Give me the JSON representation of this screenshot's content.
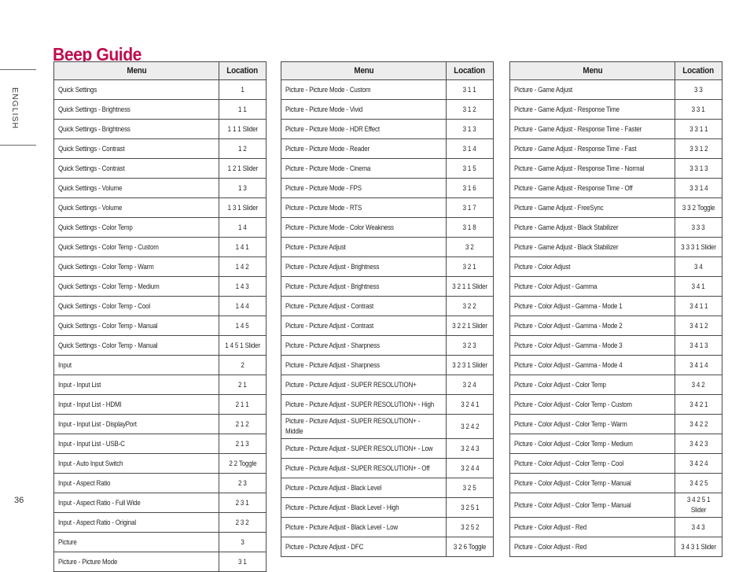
{
  "page": {
    "title": "Beep Guide",
    "title_color": "#bf0d4e",
    "language_label": "ENGLISH",
    "page_number": "36"
  },
  "tables": [
    {
      "headers": [
        "Menu",
        "Location"
      ],
      "rows": [
        [
          "Quick Settings",
          "1"
        ],
        [
          "Quick Settings - Brightness",
          "1 1"
        ],
        [
          "Quick Settings - Brightness",
          "1 1 1 Slider"
        ],
        [
          "Quick Settings - Contrast",
          "1 2"
        ],
        [
          "Quick Settings - Contrast",
          "1 2 1 Slider"
        ],
        [
          "Quick Settings - Volume",
          "1 3"
        ],
        [
          "Quick Settings - Volume",
          "1 3 1 Slider"
        ],
        [
          "Quick Settings - Color Temp",
          "1 4"
        ],
        [
          "Quick Settings - Color Temp - Custom",
          "1 4 1"
        ],
        [
          "Quick Settings - Color Temp - Warm",
          "1 4 2"
        ],
        [
          "Quick Settings - Color Temp - Medium",
          "1 4 3"
        ],
        [
          "Quick Settings - Color Temp - Cool",
          "1 4 4"
        ],
        [
          "Quick Settings - Color Temp - Manual",
          "1 4 5"
        ],
        [
          "Quick Settings - Color Temp - Manual",
          "1 4 5 1 Slider"
        ],
        [
          "Input",
          "2"
        ],
        [
          "Input - Input List",
          "2 1"
        ],
        [
          "Input - Input List - HDMI",
          "2 1 1"
        ],
        [
          "Input - Input List - DisplayPort",
          "2 1 2"
        ],
        [
          "Input - Input List - USB-C",
          "2 1 3"
        ],
        [
          "Input - Auto Input Switch",
          "2 2 Toggle"
        ],
        [
          "Input - Aspect Ratio",
          "2 3"
        ],
        [
          "Input - Aspect Ratio - Full Wide",
          "2 3 1"
        ],
        [
          "Input - Aspect Ratio - Original",
          "2 3 2"
        ],
        [
          "Picture",
          "3"
        ],
        [
          "Picture - Picture Mode",
          "3 1"
        ]
      ]
    },
    {
      "headers": [
        "Menu",
        "Location"
      ],
      "rows": [
        [
          "Picture - Picture Mode - Custom",
          "3 1 1"
        ],
        [
          "Picture - Picture Mode - Vivid",
          "3 1 2"
        ],
        [
          "Picture - Picture Mode - HDR Effect",
          "3 1 3"
        ],
        [
          "Picture - Picture Mode - Reader",
          "3 1 4"
        ],
        [
          "Picture - Picture Mode - Cinema",
          "3 1 5"
        ],
        [
          "Picture - Picture Mode - FPS",
          "3 1 6"
        ],
        [
          "Picture - Picture Mode - RTS",
          "3 1 7"
        ],
        [
          "Picture - Picture Mode - Color Weakness",
          "3 1 8"
        ],
        [
          "Picture - Picture Adjust",
          "3 2"
        ],
        [
          "Picture - Picture Adjust - Brightness",
          "3 2 1"
        ],
        [
          "Picture - Picture Adjust - Brightness",
          "3 2 1 1 Slider"
        ],
        [
          "Picture - Picture Adjust - Contrast",
          "3 2 2"
        ],
        [
          "Picture - Picture Adjust - Contrast",
          "3 2 2 1 Slider"
        ],
        [
          "Picture - Picture Adjust - Sharpness",
          "3 2 3"
        ],
        [
          "Picture - Picture Adjust - Sharpness",
          "3 2 3 1 Slider"
        ],
        [
          "Picture - Picture Adjust - SUPER RESOLUTION+",
          "3 2 4"
        ],
        [
          "Picture - Picture Adjust - SUPER RESOLUTION+ - High",
          "3 2 4 1"
        ],
        [
          "Picture - Picture Adjust - SUPER RESOLUTION+ -\nMiddle",
          "3 2 4 2"
        ],
        [
          "Picture - Picture Adjust - SUPER RESOLUTION+ - Low",
          "3 2 4 3"
        ],
        [
          "Picture - Picture Adjust - SUPER RESOLUTION+ - Off",
          "3 2 4 4"
        ],
        [
          "Picture - Picture Adjust - Black Level",
          "3 2 5"
        ],
        [
          "Picture - Picture Adjust - Black Level - High",
          "3 2 5 1"
        ],
        [
          "Picture - Picture Adjust - Black Level - Low",
          "3 2 5 2"
        ],
        [
          "Picture - Picture Adjust - DFC",
          "3 2 6 Toggle"
        ]
      ]
    },
    {
      "headers": [
        "Menu",
        "Location"
      ],
      "rows": [
        [
          "Picture - Game Adjust",
          "3 3"
        ],
        [
          "Picture - Game Adjust - Response Time",
          "3 3 1"
        ],
        [
          "Picture - Game Adjust - Response Time - Faster",
          "3 3 1 1"
        ],
        [
          "Picture - Game Adjust - Response Time - Fast",
          "3 3 1 2"
        ],
        [
          "Picture - Game Adjust - Response Time - Normal",
          "3 3 1 3"
        ],
        [
          "Picture - Game Adjust - Response Time - Off",
          "3 3 1 4"
        ],
        [
          "Picture - Game Adjust - FreeSync",
          "3 3 2 Toggle"
        ],
        [
          "Picture - Game Adjust - Black Stabilizer",
          "3 3 3"
        ],
        [
          "Picture - Game Adjust - Black Stabilizer",
          "3 3 3 1 Slider"
        ],
        [
          "Picture - Color Adjust",
          "3 4"
        ],
        [
          "Picture - Color Adjust - Gamma",
          "3 4 1"
        ],
        [
          "Picture - Color Adjust - Gamma - Mode 1",
          "3 4 1 1"
        ],
        [
          "Picture - Color Adjust - Gamma - Mode 2",
          "3 4 1 2"
        ],
        [
          "Picture - Color Adjust - Gamma - Mode 3",
          "3 4 1 3"
        ],
        [
          "Picture - Color Adjust - Gamma - Mode 4",
          "3 4 1 4"
        ],
        [
          "Picture - Color Adjust - Color Temp",
          "3 4 2"
        ],
        [
          "Picture - Color Adjust - Color Temp - Custom",
          "3 4 2 1"
        ],
        [
          "Picture - Color Adjust - Color Temp - Warm",
          "3 4 2 2"
        ],
        [
          "Picture - Color Adjust - Color Temp - Medium",
          "3 4 2 3"
        ],
        [
          "Picture - Color Adjust - Color Temp - Cool",
          "3 4 2 4"
        ],
        [
          "Picture - Color Adjust - Color Temp - Manual",
          "3 4 2 5"
        ],
        [
          "Picture - Color Adjust - Color Temp - Manual",
          "3 4 2 5 1\nSlider"
        ],
        [
          "Picture - Color Adjust - Red",
          "3 4 3"
        ],
        [
          "Picture - Color Adjust - Red",
          "3 4 3 1 Slider"
        ]
      ]
    }
  ]
}
